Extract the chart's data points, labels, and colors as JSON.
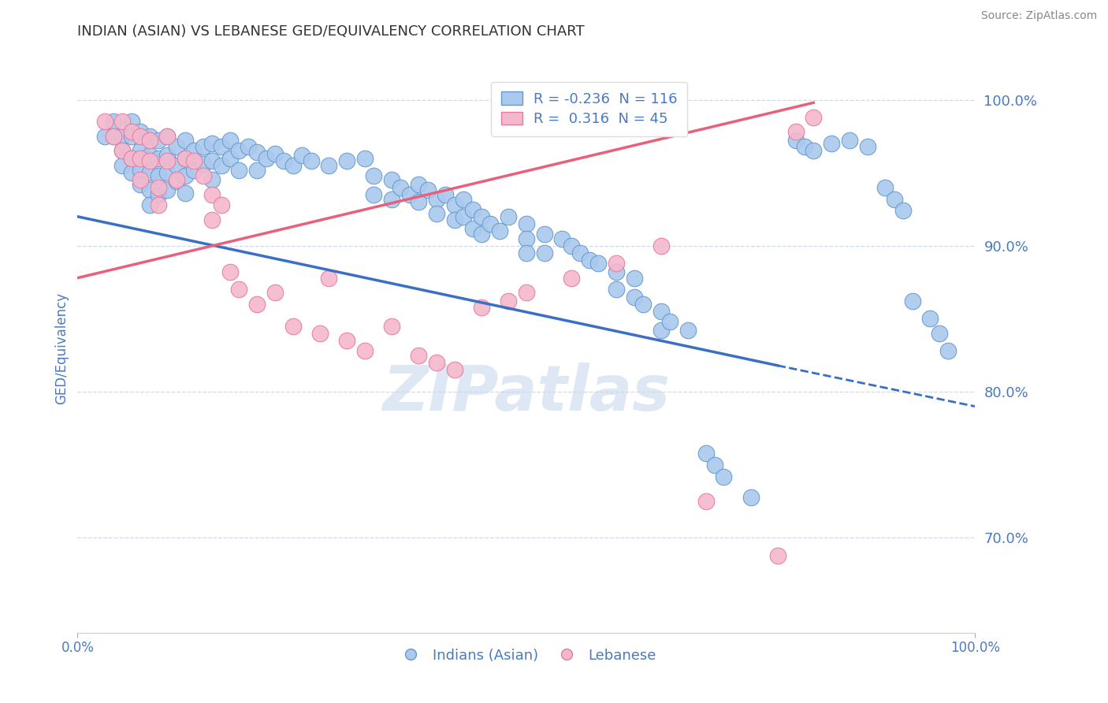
{
  "title": "INDIAN (ASIAN) VS LEBANESE GED/EQUIVALENCY CORRELATION CHART",
  "source": "Source: ZipAtlas.com",
  "ylabel": "GED/Equivalency",
  "ytick_labels": [
    "100.0%",
    "90.0%",
    "80.0%",
    "70.0%"
  ],
  "ytick_vals": [
    1.0,
    0.9,
    0.8,
    0.7
  ],
  "xlim": [
    0.0,
    1.0
  ],
  "ylim": [
    0.635,
    1.025
  ],
  "blue_R": -0.236,
  "blue_N": 116,
  "pink_R": 0.316,
  "pink_N": 45,
  "blue_color": "#aac9ee",
  "pink_color": "#f4b8cc",
  "blue_edge_color": "#6699cc",
  "pink_edge_color": "#e87aa0",
  "blue_line_color": "#3a6fc4",
  "pink_line_color": "#e8607a",
  "background_color": "#ffffff",
  "grid_color": "#d0d8f0",
  "watermark_color": "#c8d8ee",
  "axis_label_color": "#4a7abf",
  "title_color": "#333333",
  "source_color": "#888888",
  "blue_scatter": [
    [
      0.03,
      0.975
    ],
    [
      0.04,
      0.985
    ],
    [
      0.04,
      0.975
    ],
    [
      0.05,
      0.975
    ],
    [
      0.05,
      0.965
    ],
    [
      0.05,
      0.955
    ],
    [
      0.06,
      0.985
    ],
    [
      0.06,
      0.975
    ],
    [
      0.06,
      0.96
    ],
    [
      0.06,
      0.95
    ],
    [
      0.07,
      0.978
    ],
    [
      0.07,
      0.965
    ],
    [
      0.07,
      0.952
    ],
    [
      0.07,
      0.942
    ],
    [
      0.08,
      0.975
    ],
    [
      0.08,
      0.962
    ],
    [
      0.08,
      0.95
    ],
    [
      0.08,
      0.938
    ],
    [
      0.08,
      0.928
    ],
    [
      0.09,
      0.972
    ],
    [
      0.09,
      0.96
    ],
    [
      0.09,
      0.948
    ],
    [
      0.09,
      0.935
    ],
    [
      0.1,
      0.975
    ],
    [
      0.1,
      0.962
    ],
    [
      0.1,
      0.95
    ],
    [
      0.1,
      0.938
    ],
    [
      0.11,
      0.968
    ],
    [
      0.11,
      0.955
    ],
    [
      0.11,
      0.944
    ],
    [
      0.12,
      0.972
    ],
    [
      0.12,
      0.96
    ],
    [
      0.12,
      0.948
    ],
    [
      0.12,
      0.936
    ],
    [
      0.13,
      0.965
    ],
    [
      0.13,
      0.952
    ],
    [
      0.14,
      0.968
    ],
    [
      0.14,
      0.956
    ],
    [
      0.15,
      0.97
    ],
    [
      0.15,
      0.958
    ],
    [
      0.15,
      0.945
    ],
    [
      0.16,
      0.968
    ],
    [
      0.16,
      0.955
    ],
    [
      0.17,
      0.972
    ],
    [
      0.17,
      0.96
    ],
    [
      0.18,
      0.965
    ],
    [
      0.18,
      0.952
    ],
    [
      0.19,
      0.968
    ],
    [
      0.2,
      0.964
    ],
    [
      0.2,
      0.952
    ],
    [
      0.21,
      0.96
    ],
    [
      0.22,
      0.963
    ],
    [
      0.23,
      0.958
    ],
    [
      0.24,
      0.955
    ],
    [
      0.25,
      0.962
    ],
    [
      0.26,
      0.958
    ],
    [
      0.28,
      0.955
    ],
    [
      0.3,
      0.958
    ],
    [
      0.32,
      0.96
    ],
    [
      0.33,
      0.948
    ],
    [
      0.33,
      0.935
    ],
    [
      0.35,
      0.945
    ],
    [
      0.35,
      0.932
    ],
    [
      0.36,
      0.94
    ],
    [
      0.37,
      0.935
    ],
    [
      0.38,
      0.942
    ],
    [
      0.38,
      0.93
    ],
    [
      0.39,
      0.938
    ],
    [
      0.4,
      0.932
    ],
    [
      0.4,
      0.922
    ],
    [
      0.41,
      0.935
    ],
    [
      0.42,
      0.928
    ],
    [
      0.42,
      0.918
    ],
    [
      0.43,
      0.932
    ],
    [
      0.43,
      0.92
    ],
    [
      0.44,
      0.925
    ],
    [
      0.44,
      0.912
    ],
    [
      0.45,
      0.92
    ],
    [
      0.45,
      0.908
    ],
    [
      0.46,
      0.915
    ],
    [
      0.47,
      0.91
    ],
    [
      0.48,
      0.92
    ],
    [
      0.5,
      0.915
    ],
    [
      0.5,
      0.905
    ],
    [
      0.5,
      0.895
    ],
    [
      0.52,
      0.908
    ],
    [
      0.52,
      0.895
    ],
    [
      0.54,
      0.905
    ],
    [
      0.55,
      0.9
    ],
    [
      0.56,
      0.895
    ],
    [
      0.57,
      0.89
    ],
    [
      0.58,
      0.888
    ],
    [
      0.6,
      0.882
    ],
    [
      0.6,
      0.87
    ],
    [
      0.62,
      0.878
    ],
    [
      0.62,
      0.865
    ],
    [
      0.63,
      0.86
    ],
    [
      0.65,
      0.855
    ],
    [
      0.65,
      0.842
    ],
    [
      0.66,
      0.848
    ],
    [
      0.68,
      0.842
    ],
    [
      0.7,
      0.758
    ],
    [
      0.71,
      0.75
    ],
    [
      0.72,
      0.742
    ],
    [
      0.75,
      0.728
    ],
    [
      0.8,
      0.972
    ],
    [
      0.81,
      0.968
    ],
    [
      0.82,
      0.965
    ],
    [
      0.84,
      0.97
    ],
    [
      0.86,
      0.972
    ],
    [
      0.88,
      0.968
    ],
    [
      0.9,
      0.94
    ],
    [
      0.91,
      0.932
    ],
    [
      0.92,
      0.924
    ],
    [
      0.93,
      0.862
    ],
    [
      0.95,
      0.85
    ],
    [
      0.96,
      0.84
    ],
    [
      0.97,
      0.828
    ]
  ],
  "pink_scatter": [
    [
      0.03,
      0.985
    ],
    [
      0.04,
      0.975
    ],
    [
      0.05,
      0.985
    ],
    [
      0.05,
      0.965
    ],
    [
      0.06,
      0.978
    ],
    [
      0.06,
      0.96
    ],
    [
      0.07,
      0.975
    ],
    [
      0.07,
      0.96
    ],
    [
      0.07,
      0.945
    ],
    [
      0.08,
      0.972
    ],
    [
      0.08,
      0.958
    ],
    [
      0.09,
      0.94
    ],
    [
      0.09,
      0.928
    ],
    [
      0.1,
      0.975
    ],
    [
      0.1,
      0.958
    ],
    [
      0.11,
      0.945
    ],
    [
      0.12,
      0.96
    ],
    [
      0.13,
      0.958
    ],
    [
      0.14,
      0.948
    ],
    [
      0.15,
      0.935
    ],
    [
      0.15,
      0.918
    ],
    [
      0.16,
      0.928
    ],
    [
      0.17,
      0.882
    ],
    [
      0.18,
      0.87
    ],
    [
      0.2,
      0.86
    ],
    [
      0.22,
      0.868
    ],
    [
      0.24,
      0.845
    ],
    [
      0.27,
      0.84
    ],
    [
      0.28,
      0.878
    ],
    [
      0.3,
      0.835
    ],
    [
      0.32,
      0.828
    ],
    [
      0.35,
      0.845
    ],
    [
      0.38,
      0.825
    ],
    [
      0.4,
      0.82
    ],
    [
      0.42,
      0.815
    ],
    [
      0.45,
      0.858
    ],
    [
      0.48,
      0.862
    ],
    [
      0.5,
      0.868
    ],
    [
      0.55,
      0.878
    ],
    [
      0.6,
      0.888
    ],
    [
      0.65,
      0.9
    ],
    [
      0.7,
      0.725
    ],
    [
      0.78,
      0.688
    ],
    [
      0.8,
      0.978
    ],
    [
      0.82,
      0.988
    ]
  ],
  "blue_trend_x0": 0.0,
  "blue_trend_y0": 0.92,
  "blue_trend_x1_solid": 0.78,
  "blue_trend_y1_solid": 0.818,
  "blue_trend_x1_dash": 1.0,
  "blue_trend_y1_dash": 0.79,
  "pink_trend_x0": 0.0,
  "pink_trend_y0": 0.878,
  "pink_trend_x1": 0.82,
  "pink_trend_y1": 0.998
}
